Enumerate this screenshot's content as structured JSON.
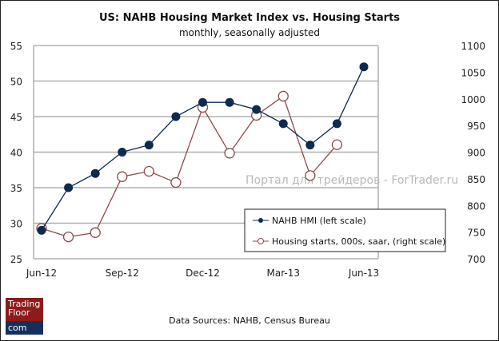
{
  "chart_data": {
    "type": "line",
    "title": "US: NAHB Housing Market Index vs. Housing Starts",
    "subtitle": "monthly, seasonally adjusted",
    "x": [
      "Jun-12",
      "Jul-12",
      "Aug-12",
      "Sep-12",
      "Oct-12",
      "Nov-12",
      "Dec-12",
      "Jan-13",
      "Feb-13",
      "Mar-13",
      "Apr-13",
      "May-13",
      "Jun-13"
    ],
    "x_tick_labels": [
      "Jun-12",
      "Sep-12",
      "Dec-12",
      "Mar-13",
      "Jun-13"
    ],
    "y_left": {
      "ylim": [
        25,
        55
      ],
      "ticks": [
        "25",
        "30",
        "35",
        "40",
        "45",
        "50",
        "55"
      ]
    },
    "y_right": {
      "ylim": [
        700,
        1100
      ],
      "ticks": [
        "700",
        "750",
        "800",
        "850",
        "900",
        "950",
        "1000",
        "1050",
        "1100"
      ]
    },
    "grid": true,
    "legend_position": "bottom-right",
    "series": [
      {
        "name": "NAHB HMI (left scale)",
        "axis": "left",
        "color": "#0d2a4f",
        "marker": "filled-circle",
        "values": [
          29,
          35,
          37,
          40,
          41,
          45,
          47,
          47,
          46,
          44,
          41,
          44,
          52
        ]
      },
      {
        "name": "Housing starts, 000s, saar, (right scale)",
        "axis": "right",
        "color": "#8b4a48",
        "marker": "open-circle",
        "values": [
          757,
          741,
          749,
          854,
          864,
          843,
          984,
          898,
          969,
          1005,
          856,
          914,
          null
        ]
      }
    ],
    "source": "Data Sources: NAHB, Census Bureau"
  },
  "watermark": "Портал для трейдеров - ForTrader.ru",
  "logo": {
    "line1": "Trading",
    "line2": "Floor",
    "line3": "com"
  }
}
